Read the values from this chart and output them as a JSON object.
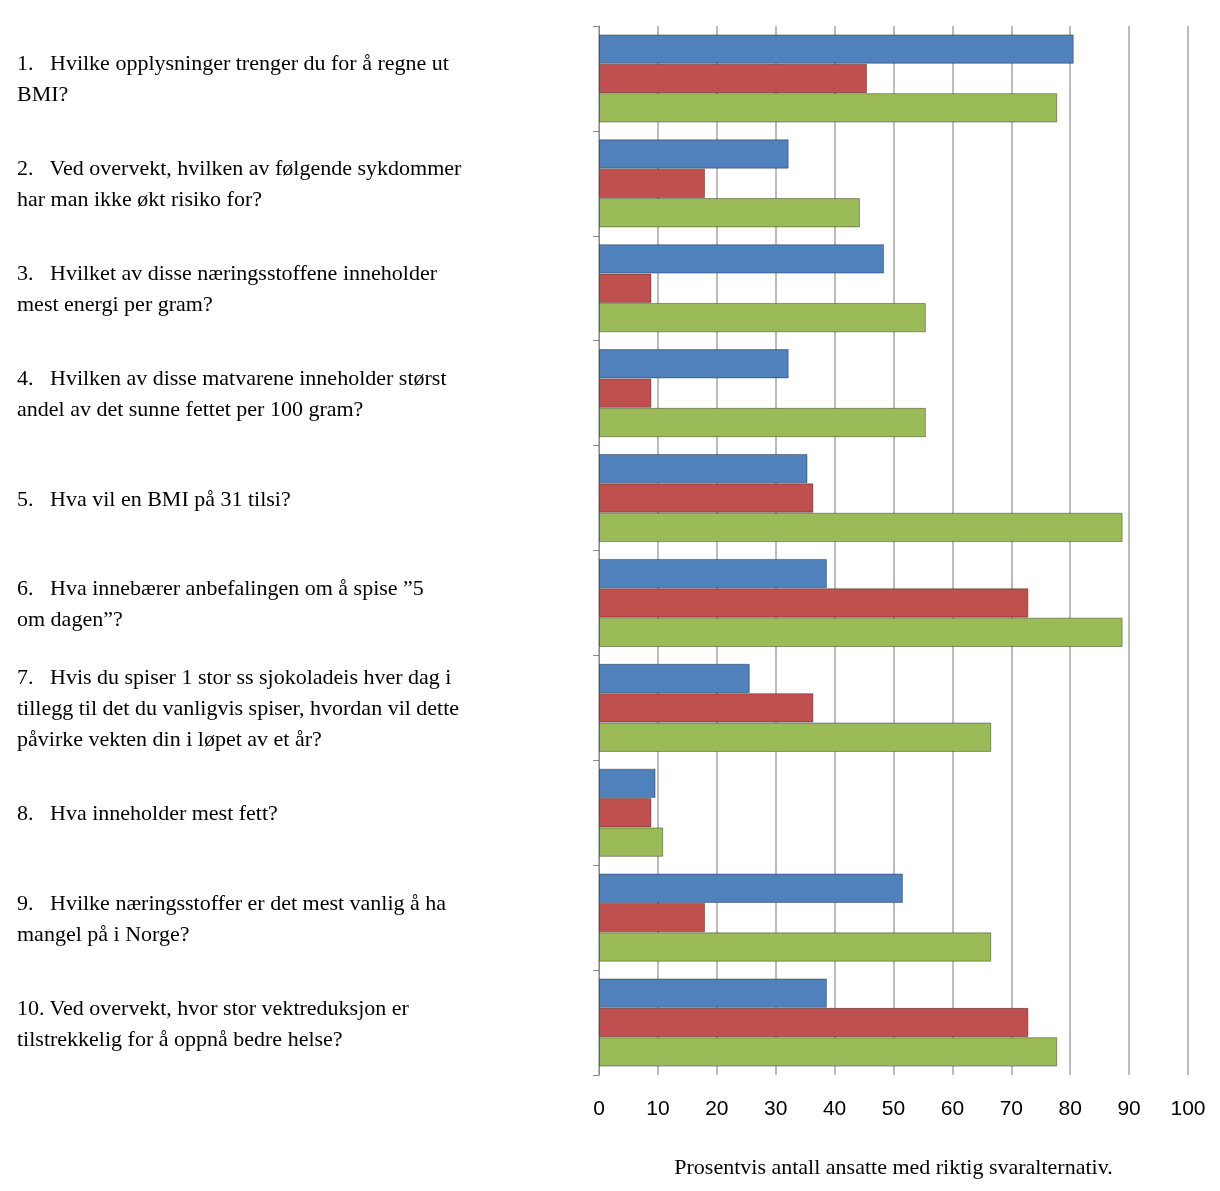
{
  "chart_data": {
    "type": "bar",
    "orientation": "horizontal",
    "xlabel": "Prosentvis antall ansatte med riktig svaralternativ.",
    "categories": [
      "1.   Hvilke opplysninger trenger du for å regne ut BMI?",
      "2.   Ved overvekt, hvilken av følgende sykdommer har man ikke økt risiko for?",
      "3.   Hvilket av disse næringsstoffene inneholder mest energi per gram?",
      "4.   Hvilken av disse matvarene inneholder størst andel av det sunne fettet per 100 gram?",
      "5.   Hva vil en BMI på 31 tilsi?",
      "6.   Hva innebærer anbefalingen om å spise ”5 om dagen”?",
      "7.   Hvis du spiser 1 stor ss sjokoladeis hver dag i tillegg til det du vanligvis spiser, hvordan vil dette påvirke vekten din i løpet av et år?",
      "8.   Hva inneholder mest fett?",
      "9.   Hvilke næringsstoffer er det mest vanlig å ha mangel på i Norge?",
      "10. Ved overvekt, hvor stor vektreduksjon er tilstrekkelig for å oppnå bedre helse?"
    ],
    "series": [
      {
        "color": "#4f81bd",
        "values": [
          80.6,
          32.2,
          48.4,
          32.2,
          35.4,
          38.7,
          25.6,
          9.6,
          51.6,
          38.7
        ]
      },
      {
        "color": "#c0504d",
        "values": [
          45.5,
          18,
          8.9,
          8.9,
          36.4,
          72.9,
          36.4,
          8.9,
          18,
          72.9
        ]
      },
      {
        "color": "#9bbb59",
        "values": [
          77.8,
          44.3,
          55.5,
          55.5,
          88.9,
          88.9,
          66.6,
          10.9,
          66.6,
          77.8
        ]
      }
    ],
    "xlim": [
      0,
      100
    ],
    "xticks": [
      0,
      10,
      20,
      30,
      40,
      50,
      60,
      70,
      80,
      90,
      100
    ],
    "grid": "x"
  }
}
